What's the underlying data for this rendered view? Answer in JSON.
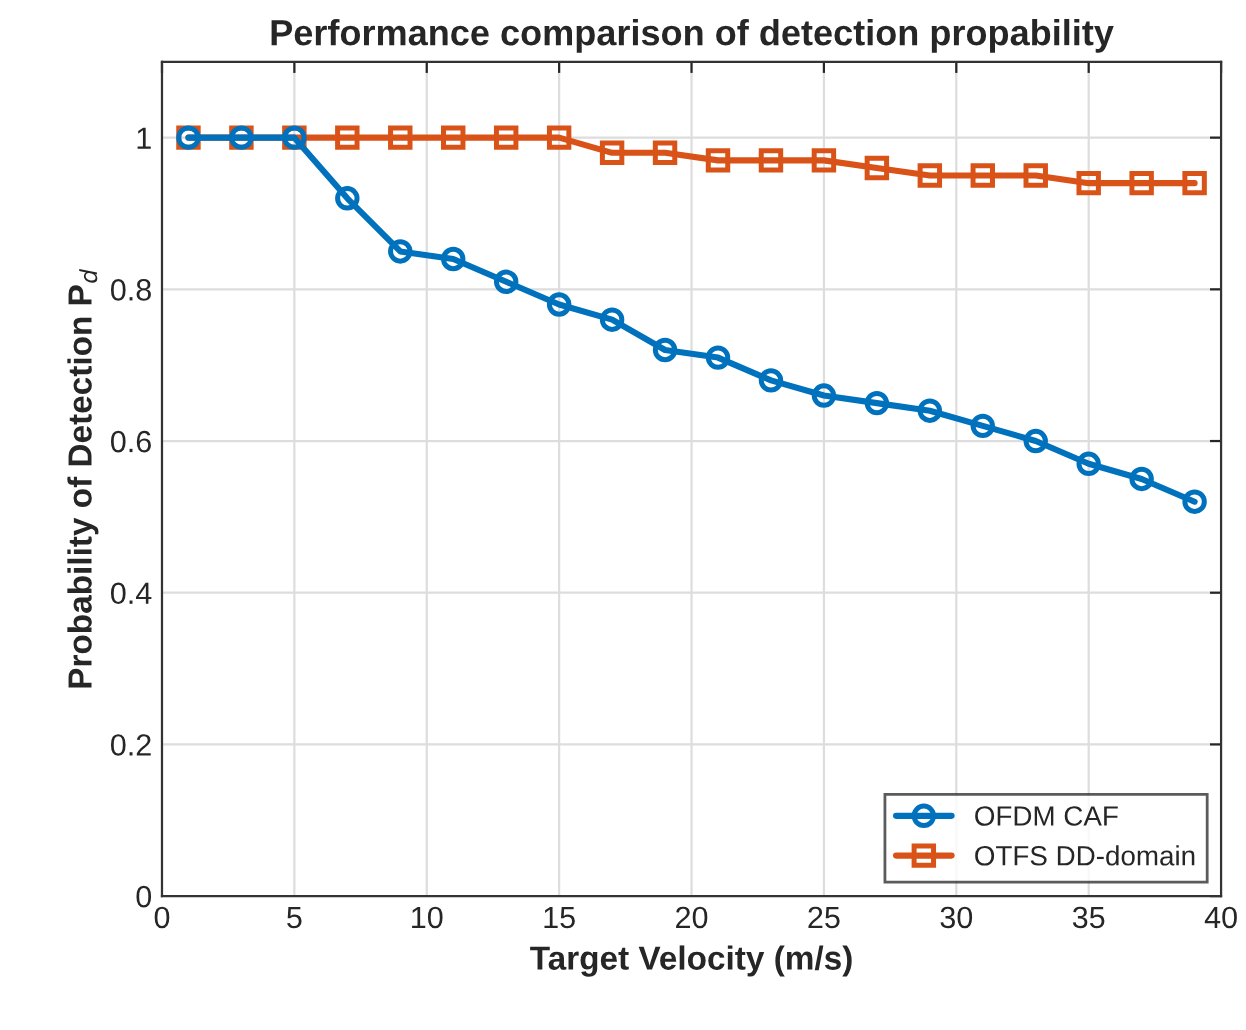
{
  "chart_data": {
    "type": "line",
    "title": "Performance comparison of detection propability",
    "xlabel": "Target Velocity (m/s)",
    "ylabel": "Probability of Detection P$_{d}$",
    "x": [
      1,
      3,
      5,
      7,
      9,
      11,
      13,
      15,
      17,
      19,
      21,
      23,
      25,
      27,
      29,
      31,
      33,
      35,
      37,
      39
    ],
    "series": [
      {
        "name": "OFDM CAF",
        "color": "#0072bd",
        "marker": "circle",
        "values": [
          1,
          1,
          1,
          0.92,
          0.85,
          0.84,
          0.81,
          0.78,
          0.76,
          0.72,
          0.71,
          0.68,
          0.66,
          0.65,
          0.64,
          0.62,
          0.6,
          0.57,
          0.55,
          0.52
        ]
      },
      {
        "name": "OTFS DD-domain",
        "color": "#d95319",
        "marker": "square",
        "values": [
          1,
          1,
          1,
          1,
          1,
          1,
          1,
          1,
          0.98,
          0.98,
          0.97,
          0.97,
          0.97,
          0.96,
          0.95,
          0.95,
          0.95,
          0.94,
          0.94,
          0.94
        ]
      }
    ],
    "xlim": [
      0,
      40
    ],
    "xticks": [
      0,
      5,
      10,
      15,
      20,
      25,
      30,
      35,
      40
    ],
    "ylim": [
      0,
      1.1
    ],
    "yticks": [
      0,
      0.2,
      0.4,
      0.6,
      0.8,
      1
    ],
    "grid": true,
    "legend": "bottom right",
    "line_style": "solid"
  }
}
